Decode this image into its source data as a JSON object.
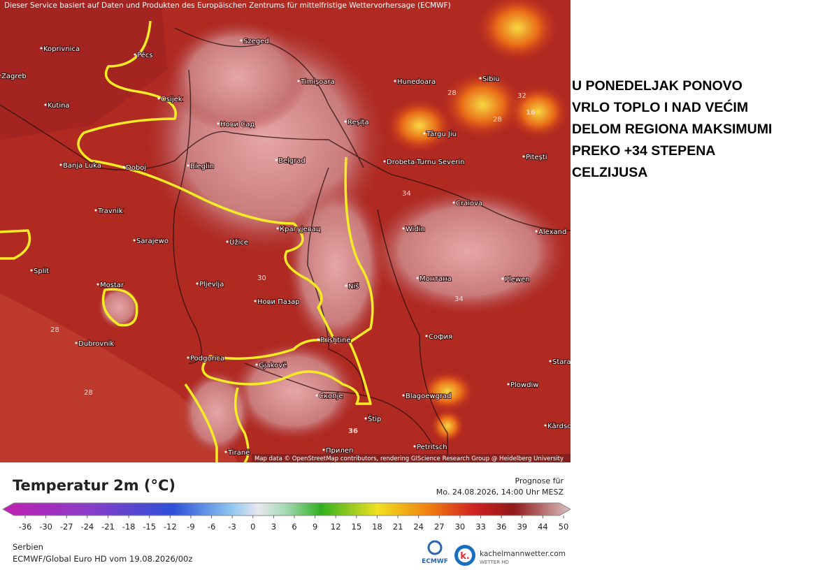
{
  "header": {
    "disclaimer": "Dieser Service basiert auf Daten und Produkten des Europäischen Zentrums für mittelfristige Wettervorhersage (ECMWF)"
  },
  "map": {
    "places": [
      "Koprivnica",
      "Pécs",
      "Zagreb",
      "Szeged",
      "Timișoara",
      "Hunedoara",
      "Sibiu",
      "Osijek",
      "Kutina",
      "Нови Сад",
      "Reșița",
      "Târgu Jiu",
      "Pitești",
      "Banja Luka",
      "Doboj",
      "Bieglin",
      "Belgrad",
      "Drobeta-Turnu Severin",
      "Craiova",
      "Travnik",
      "Крагујевац",
      "Widin",
      "Alexand",
      "Sarajewo",
      "Užice",
      "Split",
      "Mostar",
      "Pljevlja",
      "Niš",
      "Монтана",
      "Plewen",
      "Нови Пазар",
      "Dubrovnik",
      "Prishtinë",
      "София",
      "Podgorica",
      "Gjakovë",
      "Plowdiw",
      "Blagoewgrad",
      "Скопје",
      "Štip",
      "Tiranë",
      "Petritsch",
      "Прилеп",
      "Stara",
      "Kărdsc"
    ],
    "contour_labels": [
      32,
      16,
      28,
      28,
      34,
      34,
      30,
      28,
      28,
      36
    ],
    "attribution": "Map data © OpenStreetMap contributors, rendering GIScience Research Group @ Heidelberg University"
  },
  "headline": [
    "U PONEDELJAK PONOVO",
    "VRLO TOPLO I NAD VEĆIM",
    "DELOM REGIONA MAKSIMUMI",
    "PREKO +34 STEPENA",
    "CELZIJUSA"
  ],
  "legend": {
    "title": "Temperatur 2m (°C)",
    "ticks": [
      -36,
      -30,
      -27,
      -24,
      -21,
      -18,
      -15,
      -12,
      -9,
      -6,
      -3,
      0,
      3,
      6,
      9,
      12,
      15,
      18,
      21,
      24,
      27,
      30,
      33,
      36,
      39,
      44,
      50
    ],
    "forecast_label": "Prognose für",
    "forecast_time": "Mo. 24.08.2026, 14:00 Uhr MESZ"
  },
  "footer": {
    "region": "Serbien",
    "model": "ECMWF/Global Euro HD vom  19.08.2026/00z",
    "ecmwf": "ECMWF",
    "brand": "kachelmannwetter.com",
    "brand_sub": "WETTER HD"
  }
}
